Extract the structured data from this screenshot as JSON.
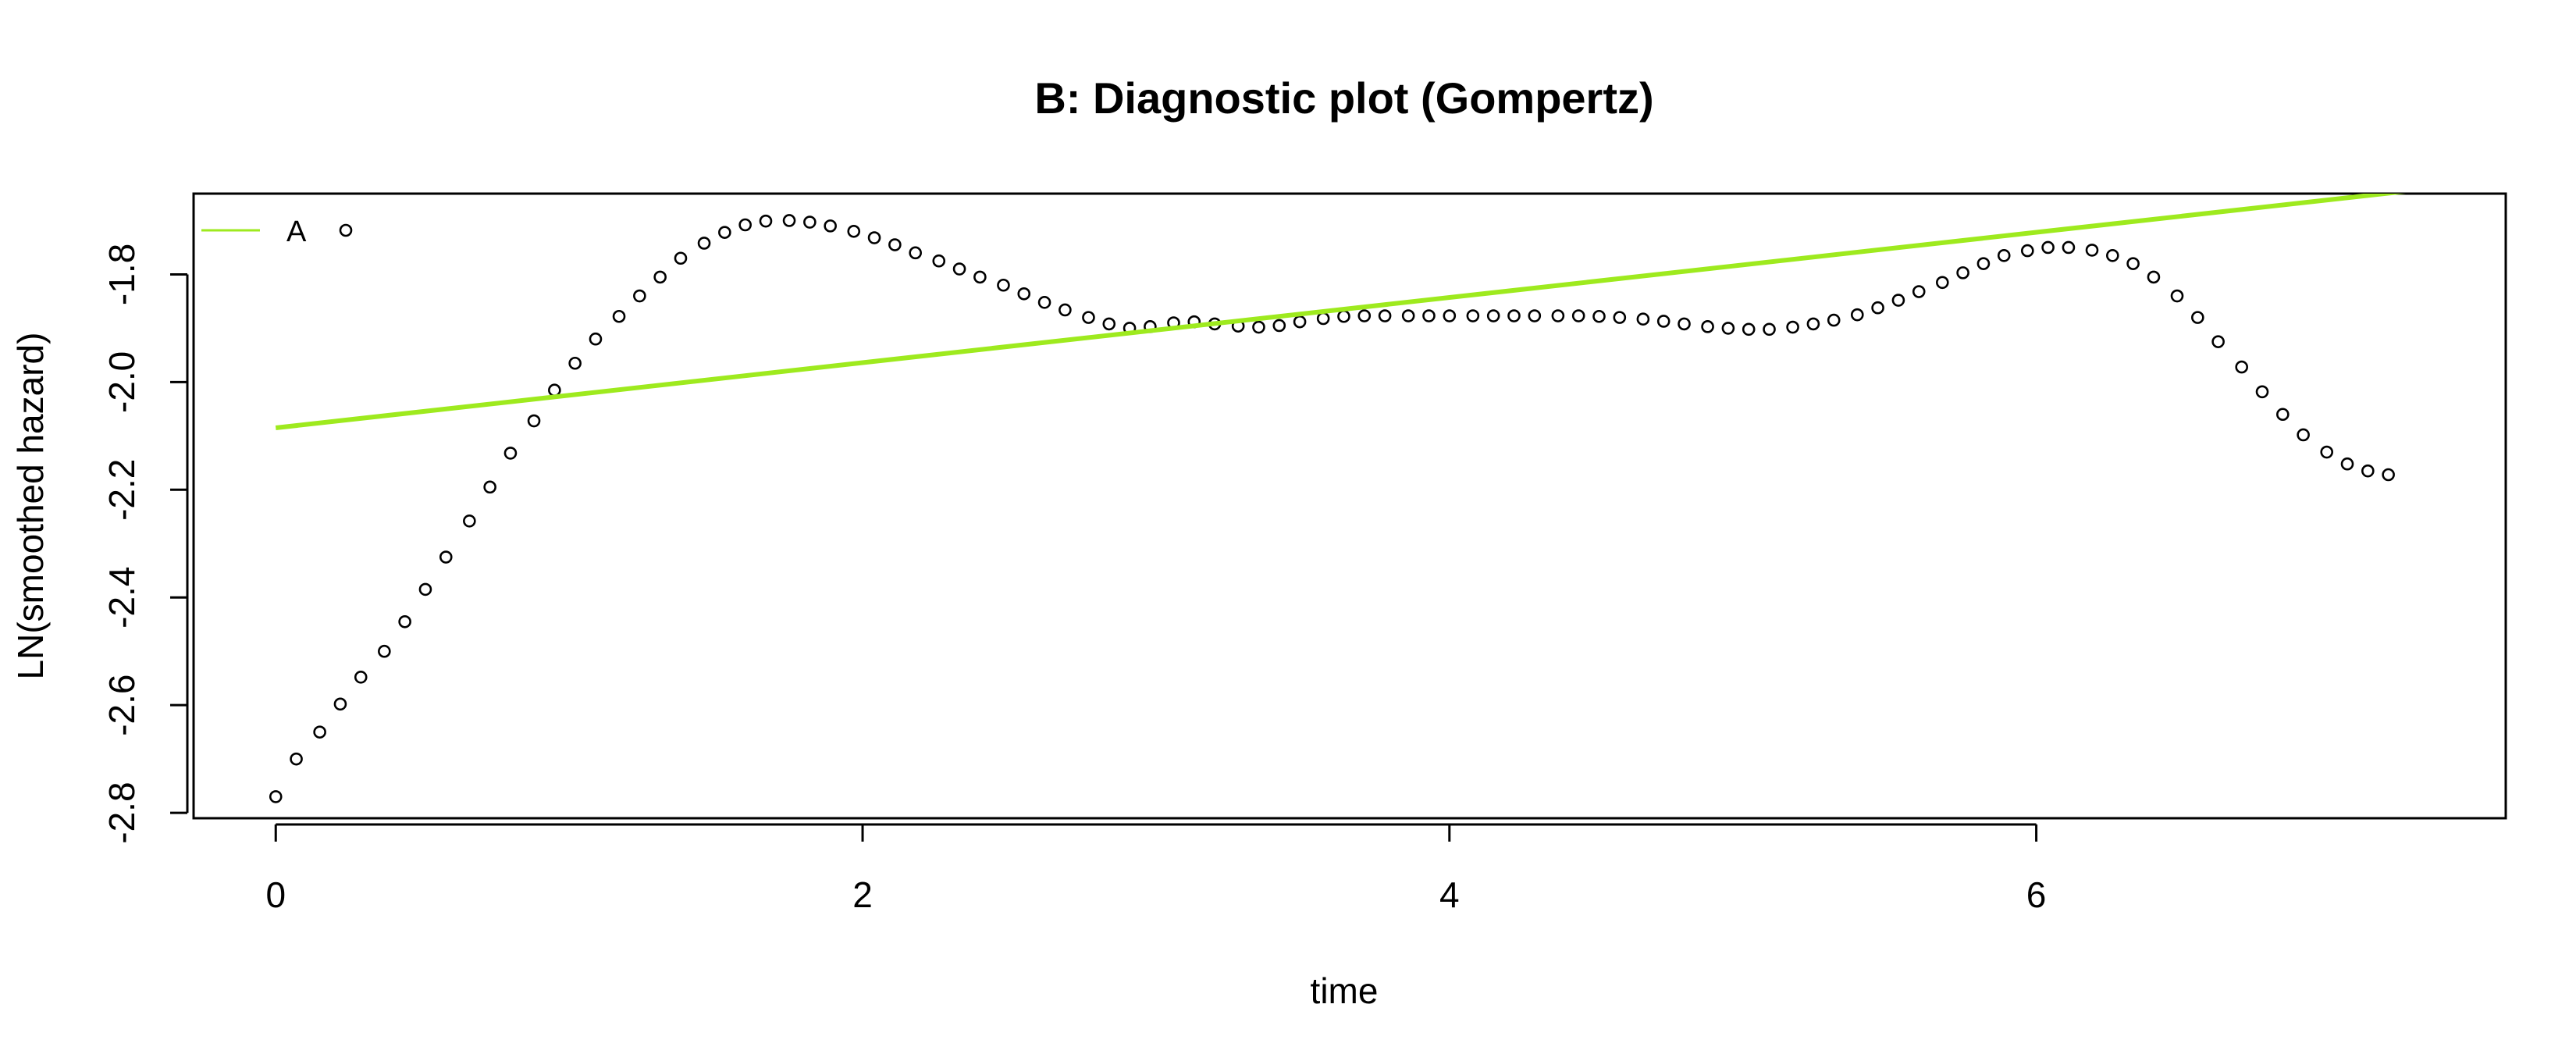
{
  "chart_data": {
    "type": "scatter",
    "title": "B: Diagnostic plot (Gompertz)",
    "xlabel": "time",
    "ylabel": "LN(smoothed hazard)",
    "xlim": [
      -0.28,
      7.6
    ],
    "ylim": [
      -2.81,
      -1.65
    ],
    "xticks": [
      0,
      2,
      4,
      6
    ],
    "yticks": [
      -2.8,
      -2.6,
      -2.4,
      -2.2,
      -2.0,
      -1.8
    ],
    "xtick_labels": [
      "0",
      "2",
      "4",
      "6"
    ],
    "ytick_labels": [
      "-2.8",
      "-2.6",
      "-2.4",
      "-2.2",
      "-2.0",
      "-1.8"
    ],
    "grid": false,
    "legend": {
      "position": "top-left",
      "entries": [
        {
          "label": "A",
          "color": "#9eea1e"
        }
      ]
    },
    "series": [
      {
        "type": "scatter",
        "marker": "open-circle",
        "color": "#000000",
        "points": [
          [
            0.0,
            -2.77
          ],
          [
            0.07,
            -2.7
          ],
          [
            0.15,
            -2.65
          ],
          [
            0.22,
            -2.598
          ],
          [
            0.29,
            -2.548
          ],
          [
            0.37,
            -2.5
          ],
          [
            0.44,
            -2.445
          ],
          [
            0.51,
            -2.385
          ],
          [
            0.58,
            -2.325
          ],
          [
            0.66,
            -2.258
          ],
          [
            0.73,
            -2.195
          ],
          [
            0.8,
            -2.132
          ],
          [
            0.88,
            -2.072
          ],
          [
            0.95,
            -2.015
          ],
          [
            1.02,
            -1.965
          ],
          [
            1.09,
            -1.92
          ],
          [
            1.17,
            -1.878
          ],
          [
            1.24,
            -1.84
          ],
          [
            1.31,
            -1.805
          ],
          [
            1.38,
            -1.77
          ],
          [
            1.46,
            -1.742
          ],
          [
            1.53,
            -1.722
          ],
          [
            1.6,
            -1.708
          ],
          [
            1.67,
            -1.701
          ],
          [
            1.75,
            -1.7
          ],
          [
            1.82,
            -1.703
          ],
          [
            1.89,
            -1.71
          ],
          [
            1.97,
            -1.72
          ],
          [
            2.04,
            -1.732
          ],
          [
            2.11,
            -1.745
          ],
          [
            2.18,
            -1.76
          ],
          [
            2.26,
            -1.775
          ],
          [
            2.33,
            -1.79
          ],
          [
            2.4,
            -1.805
          ],
          [
            2.48,
            -1.82
          ],
          [
            2.55,
            -1.836
          ],
          [
            2.62,
            -1.852
          ],
          [
            2.69,
            -1.866
          ],
          [
            2.77,
            -1.88
          ],
          [
            2.84,
            -1.892
          ],
          [
            2.91,
            -1.9
          ],
          [
            2.98,
            -1.897
          ],
          [
            3.06,
            -1.89
          ],
          [
            3.13,
            -1.888
          ],
          [
            3.2,
            -1.892
          ],
          [
            3.28,
            -1.896
          ],
          [
            3.35,
            -1.898
          ],
          [
            3.42,
            -1.895
          ],
          [
            3.49,
            -1.888
          ],
          [
            3.57,
            -1.882
          ],
          [
            3.64,
            -1.878
          ],
          [
            3.71,
            -1.877
          ],
          [
            3.78,
            -1.877
          ],
          [
            3.86,
            -1.877
          ],
          [
            3.93,
            -1.877
          ],
          [
            4.0,
            -1.877
          ],
          [
            4.08,
            -1.877
          ],
          [
            4.15,
            -1.877
          ],
          [
            4.22,
            -1.877
          ],
          [
            4.29,
            -1.877
          ],
          [
            4.37,
            -1.877
          ],
          [
            4.44,
            -1.877
          ],
          [
            4.51,
            -1.878
          ],
          [
            4.58,
            -1.88
          ],
          [
            4.66,
            -1.883
          ],
          [
            4.73,
            -1.887
          ],
          [
            4.8,
            -1.892
          ],
          [
            4.88,
            -1.897
          ],
          [
            4.95,
            -1.9
          ],
          [
            5.02,
            -1.902
          ],
          [
            5.09,
            -1.902
          ],
          [
            5.17,
            -1.898
          ],
          [
            5.24,
            -1.892
          ],
          [
            5.31,
            -1.885
          ],
          [
            5.39,
            -1.875
          ],
          [
            5.46,
            -1.862
          ],
          [
            5.53,
            -1.848
          ],
          [
            5.6,
            -1.832
          ],
          [
            5.68,
            -1.815
          ],
          [
            5.75,
            -1.797
          ],
          [
            5.82,
            -1.78
          ],
          [
            5.89,
            -1.765
          ],
          [
            5.97,
            -1.756
          ],
          [
            6.04,
            -1.75
          ],
          [
            6.11,
            -1.75
          ],
          [
            6.19,
            -1.755
          ],
          [
            6.26,
            -1.765
          ],
          [
            6.33,
            -1.78
          ],
          [
            6.4,
            -1.805
          ],
          [
            6.48,
            -1.84
          ],
          [
            6.55,
            -1.88
          ],
          [
            6.62,
            -1.925
          ],
          [
            6.7,
            -1.972
          ],
          [
            6.77,
            -2.018
          ],
          [
            6.84,
            -2.06
          ],
          [
            6.91,
            -2.098
          ],
          [
            6.99,
            -2.13
          ],
          [
            7.06,
            -2.152
          ],
          [
            7.13,
            -2.165
          ],
          [
            7.2,
            -2.172
          ]
        ]
      },
      {
        "type": "line",
        "color": "#9eea1e",
        "x": [
          0.0,
          7.6
        ],
        "y": [
          -2.085,
          -1.625
        ]
      }
    ]
  }
}
